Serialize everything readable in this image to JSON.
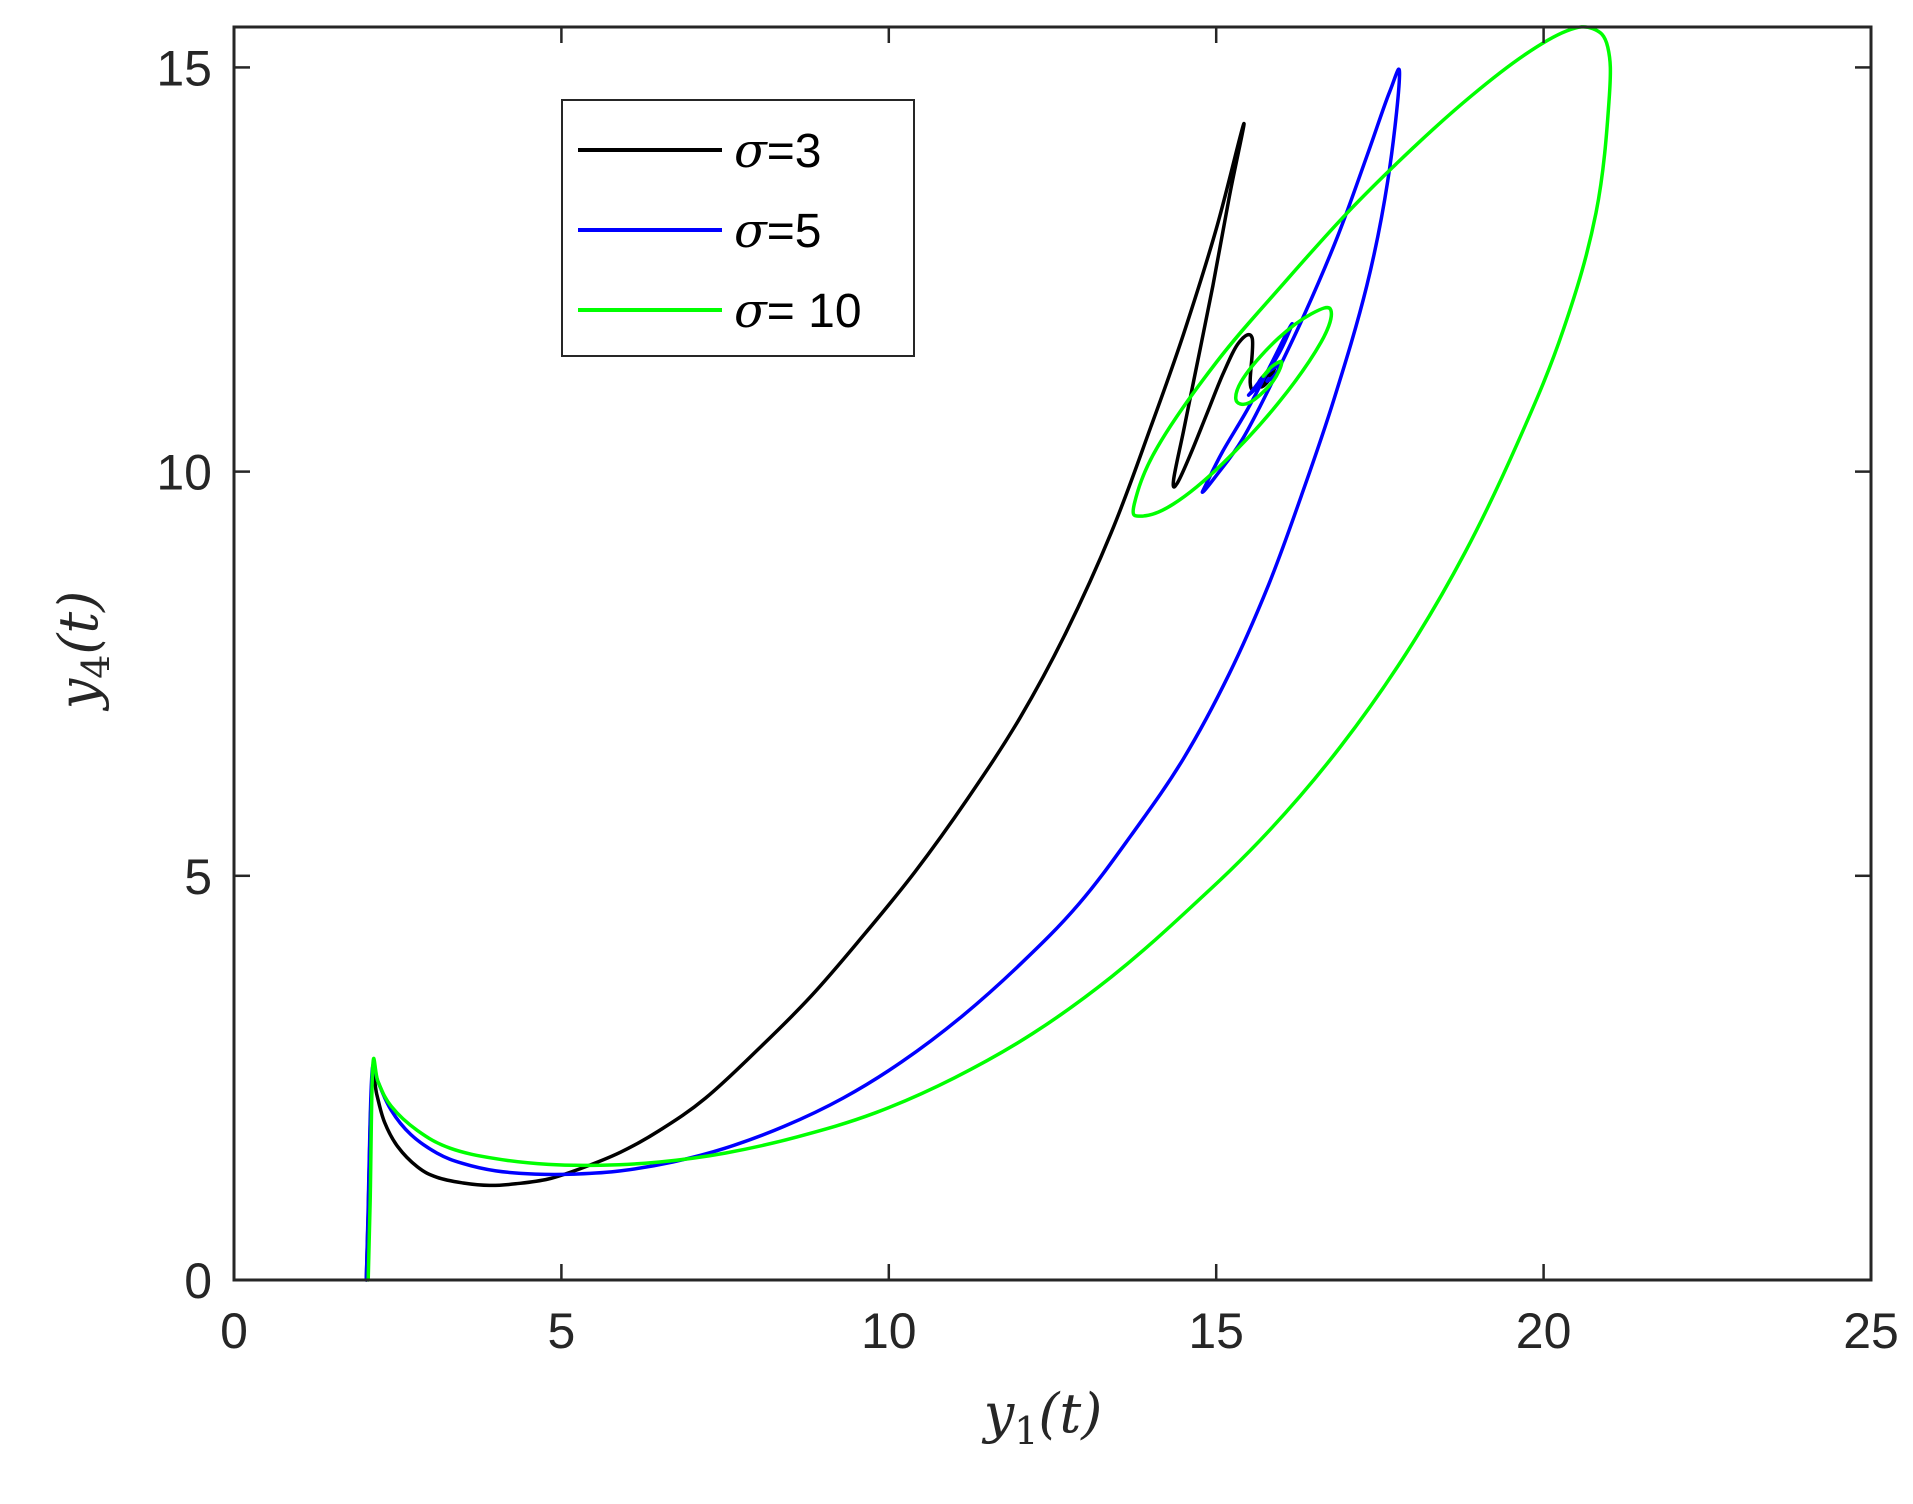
{
  "chart_data": {
    "type": "line",
    "xlabel": {
      "base": "y",
      "sub": "1",
      "arg": "(t)"
    },
    "ylabel": {
      "base": "y",
      "sub": "4",
      "arg": "(t)"
    },
    "xlim": [
      0,
      25
    ],
    "ylim": [
      0,
      15.5
    ],
    "xticks": [
      0,
      5,
      10,
      15,
      20,
      25
    ],
    "yticks": [
      0,
      5,
      10,
      15
    ],
    "xtick_labels": [
      "0",
      "5",
      "10",
      "15",
      "20",
      "25"
    ],
    "ytick_labels": [
      "0",
      "5",
      "10",
      "15"
    ],
    "grid": false,
    "legend_position": "top-left",
    "series": [
      {
        "name": "σ=3",
        "sigma_symbol": "σ",
        "label_rest": "=3",
        "color": "#000000",
        "x": [
          2.02,
          2.05,
          2.08,
          2.12,
          2.18,
          2.3,
          2.5,
          2.8,
          3.1,
          3.5,
          3.9,
          4.3,
          4.8,
          5.3,
          5.9,
          6.5,
          7.2,
          8.0,
          8.8,
          9.6,
          10.4,
          11.2,
          12.0,
          12.7,
          13.4,
          14.0,
          14.5,
          15.0,
          15.42,
          15.2,
          14.95,
          14.7,
          14.5,
          14.35,
          14.4,
          14.6,
          14.85,
          15.1,
          15.35,
          15.55,
          15.52,
          15.6,
          15.75,
          15.85,
          15.9,
          15.82,
          15.7,
          15.65,
          15.72,
          15.78
        ],
        "y": [
          0.0,
          0.8,
          1.9,
          2.55,
          2.3,
          1.95,
          1.65,
          1.4,
          1.27,
          1.2,
          1.17,
          1.19,
          1.25,
          1.38,
          1.58,
          1.85,
          2.25,
          2.85,
          3.5,
          4.25,
          5.05,
          5.95,
          6.95,
          8.0,
          9.25,
          10.55,
          11.7,
          13.0,
          14.3,
          13.4,
          12.3,
          11.3,
          10.5,
          9.9,
          9.85,
          10.2,
          10.7,
          11.2,
          11.6,
          11.65,
          11.1,
          11.02,
          11.12,
          11.25,
          11.3,
          11.15,
          11.05,
          11.1,
          11.18,
          11.22
        ]
      },
      {
        "name": "σ=5",
        "sigma_symbol": "σ",
        "label_rest": "=5",
        "color": "#0000ff",
        "x": [
          2.02,
          2.05,
          2.08,
          2.12,
          2.2,
          2.4,
          2.7,
          3.1,
          3.5,
          4.0,
          4.6,
          5.2,
          5.9,
          6.7,
          7.5,
          8.4,
          9.3,
          10.2,
          11.1,
          12.0,
          12.9,
          13.7,
          14.5,
          15.2,
          15.8,
          16.3,
          16.8,
          17.3,
          17.62,
          17.8,
          17.65,
          17.3,
          16.85,
          16.35,
          15.85,
          15.4,
          15.0,
          14.8,
          14.85,
          15.1,
          15.5,
          15.85,
          16.1,
          16.15,
          15.95,
          15.65,
          15.5,
          15.55,
          15.75,
          15.92,
          15.98,
          15.88,
          15.78,
          15.8
        ],
        "y": [
          0.0,
          0.9,
          2.0,
          2.65,
          2.45,
          2.1,
          1.8,
          1.57,
          1.44,
          1.35,
          1.31,
          1.31,
          1.35,
          1.46,
          1.63,
          1.9,
          2.25,
          2.7,
          3.25,
          3.9,
          4.65,
          5.5,
          6.45,
          7.5,
          8.6,
          9.7,
          10.9,
          12.3,
          13.6,
          14.9,
          14.7,
          13.9,
          12.9,
          11.95,
          11.1,
          10.4,
          9.95,
          9.75,
          9.85,
          10.25,
          10.8,
          11.35,
          11.75,
          11.8,
          11.45,
          11.08,
          10.95,
          11.0,
          11.2,
          11.3,
          11.3,
          11.18,
          11.12,
          11.15
        ]
      },
      {
        "name": "σ= 10",
        "sigma_symbol": "σ",
        "label_rest": "= 10",
        "color": "#00ff00",
        "x": [
          2.05,
          2.08,
          2.12,
          2.2,
          2.4,
          2.8,
          3.3,
          4.0,
          4.8,
          5.6,
          6.5,
          7.5,
          8.6,
          9.8,
          11.0,
          12.2,
          13.4,
          14.6,
          15.8,
          16.9,
          17.9,
          18.8,
          19.6,
          20.3,
          20.8,
          21.0,
          20.98,
          20.75,
          20.35,
          19.7,
          18.9,
          18.0,
          17.0,
          16.0,
          15.0,
          14.1,
          13.75,
          13.85,
          14.35,
          15.1,
          15.95,
          16.6,
          16.75,
          16.45,
          15.95,
          15.45,
          15.3,
          15.5,
          15.85,
          16.0,
          15.85,
          15.72,
          15.8
        ],
        "y": [
          0.0,
          1.0,
          2.65,
          2.45,
          2.15,
          1.85,
          1.63,
          1.5,
          1.43,
          1.42,
          1.46,
          1.57,
          1.77,
          2.07,
          2.5,
          3.05,
          3.75,
          4.6,
          5.55,
          6.6,
          7.75,
          9.0,
          10.35,
          11.75,
          13.2,
          14.6,
          15.25,
          15.48,
          15.45,
          15.15,
          14.65,
          14.0,
          13.2,
          12.3,
          11.35,
          10.3,
          9.6,
          9.45,
          9.6,
          10.1,
          10.85,
          11.6,
          12.0,
          11.95,
          11.65,
          11.2,
          10.9,
          10.85,
          11.1,
          11.35,
          11.3,
          11.18,
          11.25
        ]
      }
    ]
  }
}
